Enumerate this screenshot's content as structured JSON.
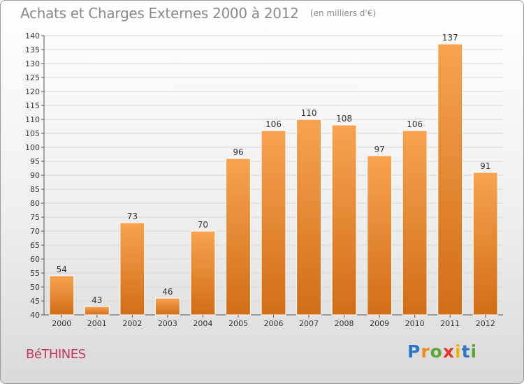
{
  "title": "Achats et Charges Externes 2000 à 2012",
  "subtitle": "(en milliers d'€)",
  "commune": "BéTHINES",
  "logo": {
    "letters": [
      "P",
      "r",
      "o",
      "x",
      "i",
      "t",
      "i"
    ],
    "colors": [
      "#2e78c8",
      "#f08a1c",
      "#5aa732",
      "#e5352b",
      "#f3b400",
      "#2e78c8",
      "#5aa732"
    ]
  },
  "colors": {
    "bar": "#f08b30",
    "bar_dark": "#d26d16",
    "axis_text": "#333333",
    "grid": "#d8d8d8"
  },
  "chart_data": {
    "type": "bar",
    "categories": [
      "2000",
      "2001",
      "2002",
      "2003",
      "2004",
      "2005",
      "2006",
      "2007",
      "2008",
      "2009",
      "2010",
      "2011",
      "2012"
    ],
    "values": [
      54,
      43,
      73,
      46,
      70,
      96,
      106,
      110,
      108,
      97,
      106,
      137,
      91
    ],
    "data_labels": [
      "54",
      "43",
      "73",
      "46",
      "70",
      "96",
      "106",
      "110",
      "108",
      "97",
      "106",
      "137",
      "91"
    ],
    "y_ticks": [
      "40",
      "45",
      "50",
      "55",
      "60",
      "65",
      "70",
      "75",
      "80",
      "85",
      "90",
      "95",
      "100",
      "105",
      "110",
      "115",
      "120",
      "125",
      "130",
      "135",
      "140"
    ],
    "ylim": [
      40,
      140
    ],
    "grid": true,
    "title": "Achats et Charges Externes 2000 à 2012",
    "xlabel": "",
    "ylabel": ""
  }
}
